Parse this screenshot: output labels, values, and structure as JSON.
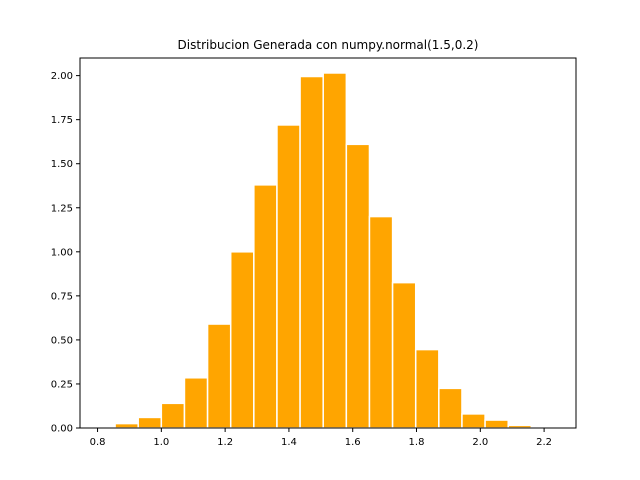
{
  "chart_data": {
    "type": "bar",
    "title": "Distribucion Generada con numpy.normal(1.5,0.2)",
    "xlabel": "",
    "ylabel": "",
    "bar_color": "#FFA500",
    "edge_color": "#FFFFFF",
    "xlim": [
      0.745,
      2.3
    ],
    "ylim": [
      0,
      2.1
    ],
    "x_ticks": [
      {
        "value": 0.8,
        "label": "0.8"
      },
      {
        "value": 1.0,
        "label": "1.0"
      },
      {
        "value": 1.2,
        "label": "1.2"
      },
      {
        "value": 1.4,
        "label": "1.4"
      },
      {
        "value": 1.6,
        "label": "1.6"
      },
      {
        "value": 1.8,
        "label": "1.8"
      },
      {
        "value": 2.0,
        "label": "2.0"
      },
      {
        "value": 2.2,
        "label": "2.2"
      }
    ],
    "y_ticks": [
      {
        "value": 0.0,
        "label": "0.00"
      },
      {
        "value": 0.25,
        "label": "0.25"
      },
      {
        "value": 0.5,
        "label": "0.50"
      },
      {
        "value": 0.75,
        "label": "0.75"
      },
      {
        "value": 1.0,
        "label": "1.00"
      },
      {
        "value": 1.25,
        "label": "1.25"
      },
      {
        "value": 1.5,
        "label": "1.50"
      },
      {
        "value": 1.75,
        "label": "1.75"
      },
      {
        "value": 2.0,
        "label": "2.00"
      }
    ],
    "bins": [
      {
        "x0": 0.7825,
        "x1": 0.855,
        "value": 0.005
      },
      {
        "x0": 0.855,
        "x1": 0.9275,
        "value": 0.025
      },
      {
        "x0": 0.9275,
        "x1": 1.0,
        "value": 0.06
      },
      {
        "x0": 1.0,
        "x1": 1.0725,
        "value": 0.14
      },
      {
        "x0": 1.0725,
        "x1": 1.145,
        "value": 0.285
      },
      {
        "x0": 1.145,
        "x1": 1.2175,
        "value": 0.59
      },
      {
        "x0": 1.2175,
        "x1": 1.29,
        "value": 1.0
      },
      {
        "x0": 1.29,
        "x1": 1.3625,
        "value": 1.38
      },
      {
        "x0": 1.3625,
        "x1": 1.435,
        "value": 1.72
      },
      {
        "x0": 1.435,
        "x1": 1.5075,
        "value": 1.995
      },
      {
        "x0": 1.5075,
        "x1": 1.58,
        "value": 2.015
      },
      {
        "x0": 1.58,
        "x1": 1.6525,
        "value": 1.61
      },
      {
        "x0": 1.6525,
        "x1": 1.725,
        "value": 1.2
      },
      {
        "x0": 1.725,
        "x1": 1.7975,
        "value": 0.825
      },
      {
        "x0": 1.7975,
        "x1": 1.87,
        "value": 0.445
      },
      {
        "x0": 1.87,
        "x1": 1.9425,
        "value": 0.225
      },
      {
        "x0": 1.9425,
        "x1": 2.015,
        "value": 0.08
      },
      {
        "x0": 2.015,
        "x1": 2.0875,
        "value": 0.045
      },
      {
        "x0": 2.0875,
        "x1": 2.16,
        "value": 0.015
      },
      {
        "x0": 2.16,
        "x1": 2.2325,
        "value": 0.005
      }
    ],
    "grid": false,
    "legend": "none"
  }
}
